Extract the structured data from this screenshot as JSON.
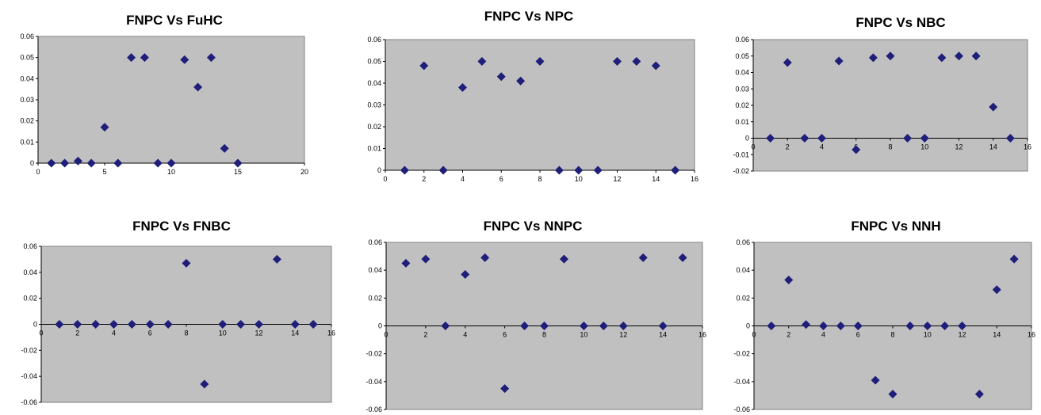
{
  "chart_data": [
    {
      "type": "scatter",
      "title": "FNPC Vs FuHC",
      "xlabel": "",
      "ylabel": "",
      "xlim": [
        0,
        20
      ],
      "ylim": [
        0,
        0.06
      ],
      "xticks": [
        0,
        5,
        10,
        15,
        20
      ],
      "xtick_labels": [
        "0",
        "5",
        "10",
        "15",
        "20"
      ],
      "yticks": [
        0,
        0.01,
        0.02,
        0.03,
        0.04,
        0.05,
        0.06
      ],
      "ytick_labels": [
        "0",
        "0.01",
        "0.02",
        "0.03",
        "0.04",
        "0.05",
        "0.06"
      ],
      "grid": false,
      "legend": "none",
      "x": [
        1,
        2,
        3,
        4,
        5,
        6,
        7,
        8,
        9,
        10,
        11,
        12,
        13,
        14,
        15
      ],
      "y": [
        0,
        0,
        0.001,
        0,
        0.017,
        0,
        0.05,
        0.05,
        0,
        0,
        0.049,
        0.036,
        0.05,
        0.007,
        0
      ]
    },
    {
      "type": "scatter",
      "title": "FNPC Vs NPC",
      "xlabel": "",
      "ylabel": "",
      "xlim": [
        0,
        16
      ],
      "ylim": [
        0,
        0.06
      ],
      "xticks": [
        0,
        2,
        4,
        6,
        8,
        10,
        12,
        14,
        16
      ],
      "xtick_labels": [
        "0",
        "2",
        "4",
        "6",
        "8",
        "10",
        "12",
        "14",
        "16"
      ],
      "yticks": [
        0,
        0.01,
        0.02,
        0.03,
        0.04,
        0.05,
        0.06
      ],
      "ytick_labels": [
        "0",
        "0.01",
        "0.02",
        "0.03",
        "0.04",
        "0.05",
        "0.06"
      ],
      "grid": false,
      "legend": "none",
      "x": [
        1,
        2,
        3,
        4,
        5,
        6,
        7,
        8,
        9,
        10,
        11,
        12,
        13,
        14,
        15
      ],
      "y": [
        0,
        0.048,
        0,
        0.038,
        0.05,
        0.043,
        0.041,
        0.05,
        0,
        0,
        0,
        0.05,
        0.05,
        0.048,
        0
      ]
    },
    {
      "type": "scatter",
      "title": "FNPC Vs NBC",
      "xlabel": "",
      "ylabel": "",
      "xlim": [
        0,
        16
      ],
      "ylim": [
        -0.02,
        0.06
      ],
      "xticks": [
        0,
        2,
        4,
        6,
        8,
        10,
        12,
        14,
        16
      ],
      "xtick_labels": [
        "0",
        "2",
        "4",
        "6",
        "8",
        "10",
        "12",
        "14",
        "16"
      ],
      "yticks": [
        -0.02,
        -0.01,
        0,
        0.01,
        0.02,
        0.03,
        0.04,
        0.05,
        0.06
      ],
      "ytick_labels": [
        "-0.02",
        "-0.01",
        "0",
        "0.01",
        "0.02",
        "0.03",
        "0.04",
        "0.05",
        "0.06"
      ],
      "grid": false,
      "legend": "none",
      "x": [
        1,
        2,
        3,
        4,
        5,
        6,
        7,
        8,
        9,
        10,
        11,
        12,
        13,
        14,
        15
      ],
      "y": [
        0,
        0.046,
        0,
        0,
        0.047,
        -0.007,
        0.049,
        0.05,
        0,
        0,
        0.049,
        0.05,
        0.05,
        0.019,
        0
      ]
    },
    {
      "type": "scatter",
      "title": "FNPC Vs FNBC",
      "xlabel": "",
      "ylabel": "",
      "xlim": [
        0,
        16
      ],
      "ylim": [
        -0.06,
        0.06
      ],
      "xticks": [
        0,
        2,
        4,
        6,
        8,
        10,
        12,
        14,
        16
      ],
      "xtick_labels": [
        "0",
        "2",
        "4",
        "6",
        "8",
        "10",
        "12",
        "14",
        "16"
      ],
      "yticks": [
        -0.06,
        -0.04,
        -0.02,
        0,
        0.02,
        0.04,
        0.06
      ],
      "ytick_labels": [
        "-0.06",
        "-0.04",
        "-0.02",
        "0",
        "0.02",
        "0.04",
        "0.06"
      ],
      "grid": false,
      "legend": "none",
      "x": [
        1,
        2,
        3,
        4,
        5,
        6,
        7,
        8,
        9,
        10,
        11,
        12,
        13,
        14,
        15
      ],
      "y": [
        0,
        0,
        0,
        0,
        0,
        0,
        0,
        0.047,
        -0.046,
        0,
        0,
        0,
        0.05,
        0,
        0
      ]
    },
    {
      "type": "scatter",
      "title": "FNPC Vs NNPC",
      "xlabel": "",
      "ylabel": "",
      "xlim": [
        0,
        16
      ],
      "ylim": [
        -0.06,
        0.06
      ],
      "xticks": [
        0,
        2,
        4,
        6,
        8,
        10,
        12,
        14,
        16
      ],
      "xtick_labels": [
        "0",
        "2",
        "4",
        "6",
        "8",
        "10",
        "12",
        "14",
        "16"
      ],
      "yticks": [
        -0.06,
        -0.04,
        -0.02,
        0,
        0.02,
        0.04,
        0.06
      ],
      "ytick_labels": [
        "-0.06",
        "-0.04",
        "-0.02",
        "0",
        "0.02",
        "0.04",
        "0.06"
      ],
      "grid": false,
      "legend": "none",
      "x": [
        1,
        2,
        3,
        4,
        5,
        6,
        7,
        8,
        9,
        10,
        11,
        12,
        13,
        14,
        15
      ],
      "y": [
        0.045,
        0.048,
        0,
        0.037,
        0.049,
        -0.045,
        0,
        0,
        0.048,
        0,
        0,
        0,
        0.049,
        0,
        0.049
      ]
    },
    {
      "type": "scatter",
      "title": "FNPC Vs NNH",
      "xlabel": "",
      "ylabel": "",
      "xlim": [
        0,
        16
      ],
      "ylim": [
        -0.06,
        0.06
      ],
      "xticks": [
        0,
        2,
        4,
        6,
        8,
        10,
        12,
        14,
        16
      ],
      "xtick_labels": [
        "0",
        "2",
        "4",
        "6",
        "8",
        "10",
        "12",
        "14",
        "16"
      ],
      "yticks": [
        -0.06,
        -0.04,
        -0.02,
        0,
        0.02,
        0.04,
        0.06
      ],
      "ytick_labels": [
        "-0.06",
        "-0.04",
        "-0.02",
        "0",
        "0.02",
        "0.04",
        "0.06"
      ],
      "grid": false,
      "legend": "none",
      "x": [
        1,
        2,
        3,
        4,
        5,
        6,
        7,
        8,
        9,
        10,
        11,
        12,
        13,
        14,
        15
      ],
      "y": [
        0,
        0.033,
        0.001,
        0,
        0,
        0,
        -0.039,
        -0.049,
        0,
        0,
        0,
        0,
        -0.049,
        0.026,
        0.048
      ]
    }
  ],
  "colors": {
    "plot_background": "#c0c0c0",
    "marker": "#1f1f7a",
    "plot_border": "#808080"
  }
}
